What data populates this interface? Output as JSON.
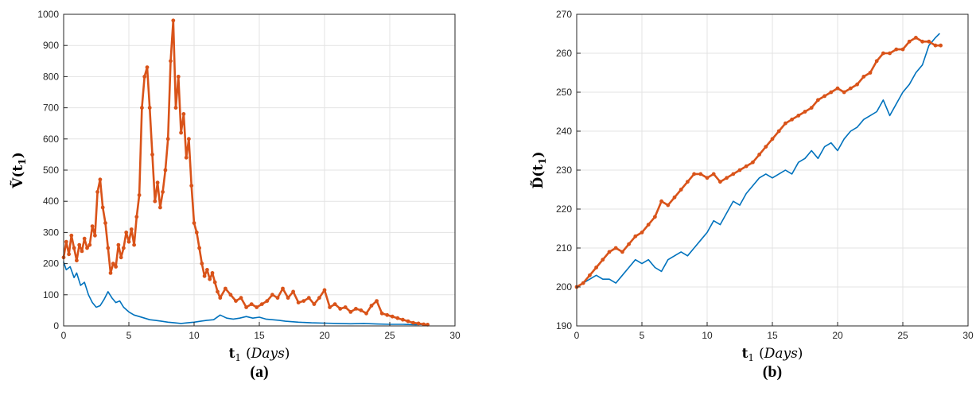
{
  "chart_data": [
    {
      "type": "line",
      "caption": "(a)",
      "xlabel_main": "t",
      "xlabel_sub": "1",
      "xlabel_unit": "(Days)",
      "ylabel_main": "V",
      "ylabel_arg": "t",
      "ylabel_sub": "1",
      "xlim": [
        0,
        30
      ],
      "ylim": [
        0,
        1000
      ],
      "xticks": [
        0,
        5,
        10,
        15,
        20,
        25,
        30
      ],
      "yticks": [
        0,
        100,
        200,
        300,
        400,
        500,
        600,
        700,
        800,
        900,
        1000
      ],
      "grid": true,
      "series": [
        {
          "color": "#0072BD",
          "style": "line",
          "x": [
            0,
            0.2,
            0.5,
            0.8,
            1.0,
            1.3,
            1.6,
            1.9,
            2.2,
            2.5,
            2.8,
            3.1,
            3.4,
            3.7,
            4.0,
            4.3,
            4.6,
            5.0,
            5.4,
            5.8,
            6.2,
            6.6,
            7.0,
            7.5,
            8.0,
            8.5,
            9.0,
            9.5,
            10.0,
            10.5,
            11.0,
            11.5,
            12.0,
            12.5,
            13.0,
            13.5,
            14.0,
            14.5,
            15.0,
            15.5,
            16.0,
            16.5,
            17.0,
            18.0,
            19.0,
            20.0,
            21.0,
            22.0,
            23.0,
            24.0,
            25.0,
            26.0,
            27.0,
            27.8
          ],
          "y": [
            205,
            180,
            190,
            155,
            170,
            130,
            140,
            100,
            75,
            60,
            65,
            85,
            110,
            90,
            75,
            80,
            60,
            45,
            35,
            30,
            25,
            20,
            18,
            15,
            12,
            10,
            8,
            10,
            12,
            15,
            18,
            20,
            35,
            25,
            22,
            25,
            30,
            25,
            28,
            22,
            20,
            18,
            15,
            12,
            10,
            9,
            8,
            7,
            8,
            6,
            5,
            5,
            4,
            5
          ]
        },
        {
          "color": "#D95319",
          "style": "thick-markers",
          "x": [
            0,
            0.2,
            0.4,
            0.6,
            0.8,
            1.0,
            1.2,
            1.4,
            1.6,
            1.8,
            2.0,
            2.2,
            2.4,
            2.6,
            2.8,
            3.0,
            3.2,
            3.4,
            3.6,
            3.8,
            4.0,
            4.2,
            4.4,
            4.6,
            4.8,
            5.0,
            5.2,
            5.4,
            5.6,
            5.8,
            6.0,
            6.2,
            6.4,
            6.6,
            6.8,
            7.0,
            7.2,
            7.4,
            7.6,
            7.8,
            8.0,
            8.2,
            8.4,
            8.6,
            8.8,
            9.0,
            9.2,
            9.4,
            9.6,
            9.8,
            10.0,
            10.2,
            10.4,
            10.6,
            10.8,
            11.0,
            11.2,
            11.4,
            11.6,
            11.8,
            12.0,
            12.4,
            12.8,
            13.2,
            13.6,
            14.0,
            14.4,
            14.8,
            15.2,
            15.6,
            16.0,
            16.4,
            16.8,
            17.2,
            17.6,
            18.0,
            18.4,
            18.8,
            19.2,
            19.6,
            20.0,
            20.4,
            20.8,
            21.2,
            21.6,
            22.0,
            22.4,
            22.8,
            23.2,
            23.6,
            24.0,
            24.4,
            24.8,
            25.2,
            25.6,
            26.0,
            26.4,
            26.8,
            27.2,
            27.6,
            27.9
          ],
          "y": [
            220,
            270,
            230,
            290,
            250,
            210,
            260,
            240,
            280,
            250,
            260,
            320,
            290,
            430,
            470,
            380,
            330,
            250,
            170,
            200,
            190,
            260,
            220,
            250,
            300,
            270,
            310,
            260,
            350,
            420,
            700,
            800,
            830,
            700,
            550,
            400,
            460,
            380,
            430,
            500,
            600,
            850,
            980,
            700,
            800,
            620,
            680,
            540,
            600,
            450,
            330,
            300,
            250,
            200,
            160,
            180,
            150,
            170,
            140,
            110,
            90,
            120,
            100,
            80,
            90,
            60,
            70,
            60,
            70,
            80,
            100,
            90,
            120,
            90,
            110,
            75,
            80,
            90,
            70,
            90,
            115,
            60,
            70,
            55,
            60,
            45,
            55,
            50,
            40,
            65,
            80,
            40,
            35,
            30,
            25,
            20,
            15,
            10,
            8,
            5,
            4
          ]
        }
      ]
    },
    {
      "type": "line",
      "caption": "(b)",
      "xlabel_main": "t",
      "xlabel_sub": "1",
      "xlabel_unit": "(Days)",
      "ylabel_main": "D",
      "ylabel_arg": "t",
      "ylabel_sub": "1",
      "xlim": [
        0,
        30
      ],
      "ylim": [
        190,
        270
      ],
      "xticks": [
        0,
        5,
        10,
        15,
        20,
        25,
        30
      ],
      "yticks": [
        190,
        200,
        210,
        220,
        230,
        240,
        250,
        260,
        270
      ],
      "grid": true,
      "series": [
        {
          "color": "#0072BD",
          "style": "line",
          "x": [
            0,
            0.5,
            1.0,
            1.5,
            2.0,
            2.5,
            3.0,
            3.5,
            4.0,
            4.5,
            5.0,
            5.5,
            6.0,
            6.5,
            7.0,
            7.5,
            8.0,
            8.5,
            9.0,
            9.5,
            10.0,
            10.5,
            11.0,
            11.5,
            12.0,
            12.5,
            13.0,
            13.5,
            14.0,
            14.5,
            15.0,
            15.5,
            16.0,
            16.5,
            17.0,
            17.5,
            18.0,
            18.5,
            19.0,
            19.5,
            20.0,
            20.5,
            21.0,
            21.5,
            22.0,
            22.5,
            23.0,
            23.5,
            24.0,
            24.5,
            25.0,
            25.5,
            26.0,
            26.5,
            27.0,
            27.5,
            27.8
          ],
          "y": [
            200,
            201,
            202,
            203,
            202,
            202,
            201,
            203,
            205,
            207,
            206,
            207,
            205,
            204,
            207,
            208,
            209,
            208,
            210,
            212,
            214,
            217,
            216,
            219,
            222,
            221,
            224,
            226,
            228,
            229,
            228,
            229,
            230,
            229,
            232,
            233,
            235,
            233,
            236,
            237,
            235,
            238,
            240,
            241,
            243,
            244,
            245,
            248,
            244,
            247,
            250,
            252,
            255,
            257,
            262,
            264,
            265
          ]
        },
        {
          "color": "#D95319",
          "style": "thick-markers",
          "x": [
            0,
            0.5,
            1.0,
            1.5,
            2.0,
            2.5,
            3.0,
            3.5,
            4.0,
            4.5,
            5.0,
            5.5,
            6.0,
            6.5,
            7.0,
            7.5,
            8.0,
            8.5,
            9.0,
            9.5,
            10.0,
            10.5,
            11.0,
            11.5,
            12.0,
            12.5,
            13.0,
            13.5,
            14.0,
            14.5,
            15.0,
            15.5,
            16.0,
            16.5,
            17.0,
            17.5,
            18.0,
            18.5,
            19.0,
            19.5,
            20.0,
            20.5,
            21.0,
            21.5,
            22.0,
            22.5,
            23.0,
            23.5,
            24.0,
            24.5,
            25.0,
            25.5,
            26.0,
            26.5,
            27.0,
            27.5,
            27.9
          ],
          "y": [
            200,
            201,
            203,
            205,
            207,
            209,
            210,
            209,
            211,
            213,
            214,
            216,
            218,
            222,
            221,
            223,
            225,
            227,
            229,
            229,
            228,
            229,
            227,
            228,
            229,
            230,
            231,
            232,
            234,
            236,
            238,
            240,
            242,
            243,
            244,
            245,
            246,
            248,
            249,
            250,
            251,
            250,
            251,
            252,
            254,
            255,
            258,
            260,
            260,
            261,
            261,
            263,
            264,
            263,
            263,
            262,
            262
          ]
        }
      ]
    }
  ]
}
